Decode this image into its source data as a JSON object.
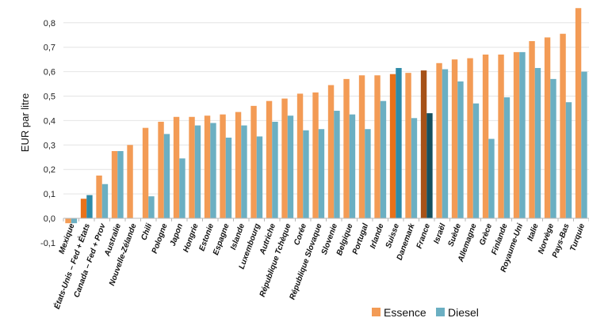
{
  "chart_data": {
    "type": "bar",
    "title": "",
    "xlabel": "",
    "ylabel": "EUR par litre",
    "ylim": [
      -0.1,
      0.8
    ],
    "yticks": [
      "-0,1",
      "0,0",
      "0,1",
      "0,2",
      "0,3",
      "0,4",
      "0,5",
      "0,6",
      "0,7",
      "0,8"
    ],
    "ytick_values": [
      -0.1,
      0,
      0.1,
      0.2,
      0.3,
      0.4,
      0.5,
      0.6,
      0.7,
      0.8
    ],
    "grid": true,
    "legend_position": "bottom-right",
    "categories": [
      "Mexique",
      "États-Unis – Fed + États",
      "Canada – Fed + Prov",
      "Australie",
      "Nouvelle-Zélande",
      "Chili",
      "Pologne",
      "Japon",
      "Hongrie",
      "Estonie",
      "Espagne",
      "Islande",
      "Luxembourg",
      "Autriche",
      "République Tchèque",
      "Corée",
      "République Slovaque",
      "Slovenie",
      "Belgique",
      "Portugal",
      "Irlande",
      "Suisse",
      "Danemark",
      "France",
      "Israël",
      "Suède",
      "Allemagne",
      "Grèce",
      "Finlande",
      "Royaume-Uni",
      "Italie",
      "Norvège",
      "Pays-Bas",
      "Turquie"
    ],
    "series": [
      {
        "name": "Essence",
        "color": "#F39B55",
        "values": [
          -0.02,
          0.08,
          0.175,
          0.275,
          0.3,
          0.37,
          0.395,
          0.415,
          0.415,
          0.42,
          0.425,
          0.435,
          0.46,
          0.48,
          0.49,
          0.51,
          0.515,
          0.545,
          0.57,
          0.585,
          0.585,
          0.59,
          0.595,
          0.605,
          0.635,
          0.65,
          0.655,
          0.67,
          0.67,
          0.68,
          0.725,
          0.74,
          0.755,
          0.86
        ]
      },
      {
        "name": "Diesel",
        "color": "#6BAFC2",
        "values": [
          -0.02,
          0.095,
          0.14,
          0.275,
          0.0,
          0.09,
          0.345,
          0.245,
          0.38,
          0.39,
          0.33,
          0.38,
          0.335,
          0.395,
          0.42,
          0.36,
          0.365,
          0.44,
          0.425,
          0.365,
          0.48,
          0.615,
          0.41,
          0.43,
          0.61,
          0.56,
          0.47,
          0.325,
          0.495,
          0.68,
          0.615,
          0.57,
          0.475,
          0.6
        ]
      }
    ],
    "highlights": [
      {
        "category": "États-Unis – Fed + États",
        "essence_color": "#E8711A",
        "diesel_color": "#2E8BA8"
      },
      {
        "category": "Suisse",
        "essence_color": "#E8711A",
        "diesel_color": "#2E8BA8"
      },
      {
        "category": "France",
        "essence_color": "#A65218",
        "diesel_color": "#14505F"
      }
    ]
  }
}
